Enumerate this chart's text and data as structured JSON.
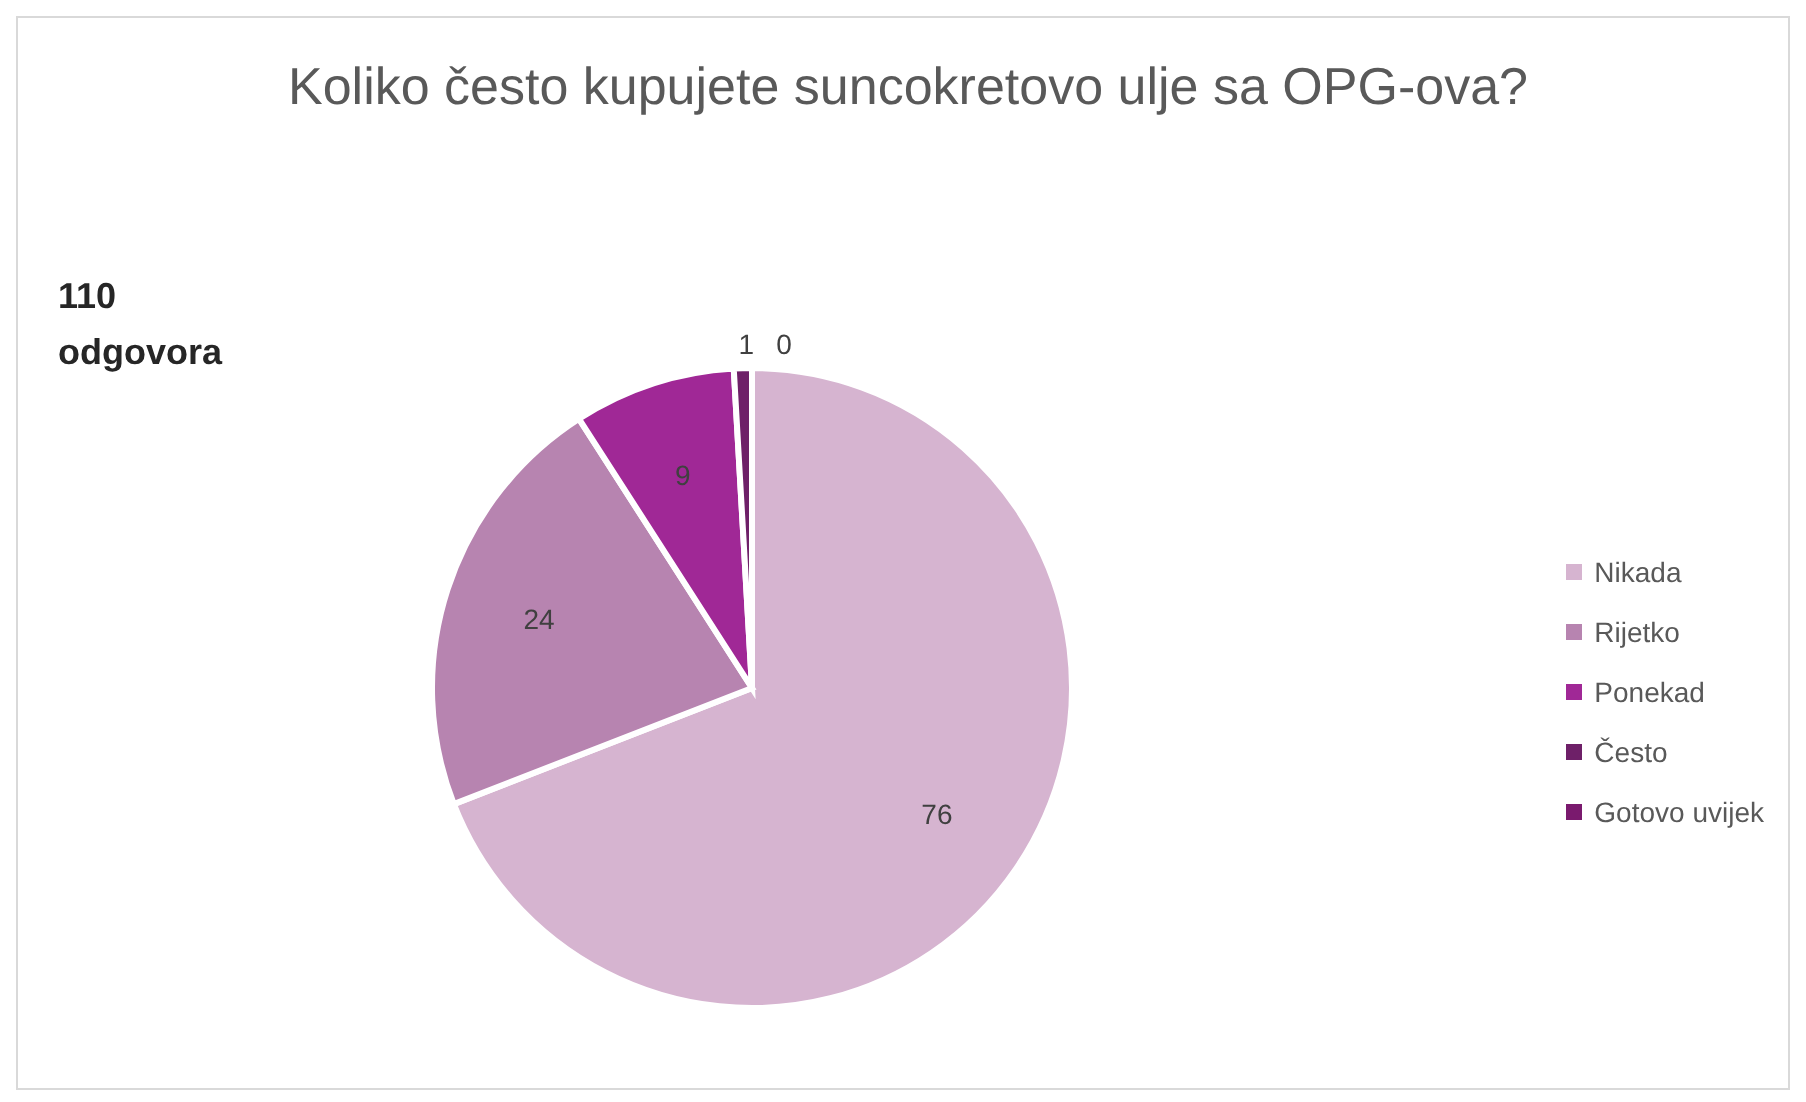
{
  "chart_data": {
    "type": "pie",
    "title": "Koliko često kupujete suncokretovo ulje sa OPG-ova?",
    "categories": [
      "Nikada",
      "Rijetko",
      "Ponekad",
      "Često",
      "Gotovo uvijek"
    ],
    "values": [
      76,
      24,
      9,
      1,
      0
    ],
    "colors": [
      "#d6b4d0",
      "#b784b0",
      "#a02896",
      "#6e2068",
      "#7a1a6e"
    ],
    "value_labels": [
      "76",
      "24",
      "9",
      "1",
      "0"
    ],
    "legend": "right",
    "annotations": [
      "110 odgovora"
    ]
  }
}
